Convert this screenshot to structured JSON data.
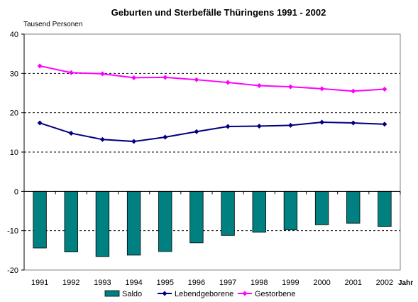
{
  "chart_data": {
    "type": "bar",
    "title": "Geburten und Sterbefälle Thüringens 1991 - 2002",
    "ylabel": "Tausend Personen",
    "xlabel": "Jahr",
    "ylim": [
      -20,
      40
    ],
    "yticks": [
      40,
      30,
      20,
      10,
      0,
      -10,
      -20
    ],
    "grid": "horizontal dashed",
    "legend_position": "bottom",
    "categories": [
      "1991",
      "1992",
      "1993",
      "1994",
      "1995",
      "1996",
      "1997",
      "1998",
      "1999",
      "2000",
      "2001",
      "2002"
    ],
    "series": [
      {
        "name": "Saldo",
        "kind": "bar",
        "color": "#008080",
        "values": [
          -14.4,
          -15.4,
          -16.6,
          -16.2,
          -15.3,
          -13.1,
          -11.2,
          -10.4,
          -9.8,
          -8.5,
          -8.1,
          -8.9
        ]
      },
      {
        "name": "Lebendgeborene",
        "kind": "line",
        "color": "#000080",
        "values": [
          17.4,
          14.8,
          13.2,
          12.7,
          13.8,
          15.2,
          16.5,
          16.6,
          16.8,
          17.6,
          17.4,
          17.1
        ]
      },
      {
        "name": "Gestorbene",
        "kind": "line",
        "color": "#ff00ff",
        "values": [
          31.9,
          30.2,
          29.9,
          28.9,
          29.0,
          28.4,
          27.7,
          26.9,
          26.6,
          26.1,
          25.5,
          26.0
        ]
      }
    ]
  }
}
